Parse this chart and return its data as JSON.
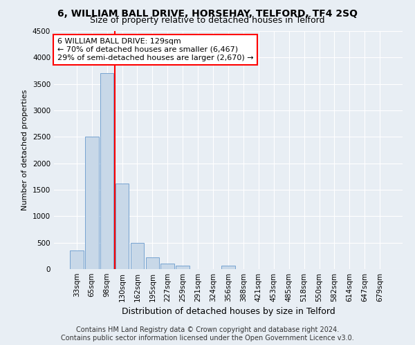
{
  "title1": "6, WILLIAM BALL DRIVE, HORSEHAY, TELFORD, TF4 2SQ",
  "title2": "Size of property relative to detached houses in Telford",
  "xlabel": "Distribution of detached houses by size in Telford",
  "ylabel": "Number of detached properties",
  "categories": [
    "33sqm",
    "65sqm",
    "98sqm",
    "130sqm",
    "162sqm",
    "195sqm",
    "227sqm",
    "259sqm",
    "291sqm",
    "324sqm",
    "356sqm",
    "388sqm",
    "421sqm",
    "453sqm",
    "485sqm",
    "518sqm",
    "550sqm",
    "582sqm",
    "614sqm",
    "647sqm",
    "679sqm"
  ],
  "values": [
    350,
    2500,
    3700,
    1620,
    500,
    220,
    100,
    60,
    0,
    0,
    60,
    0,
    0,
    0,
    0,
    0,
    0,
    0,
    0,
    0,
    0
  ],
  "bar_color": "#c8d8e8",
  "bar_edge_color": "#6699cc",
  "vline_color": "red",
  "vline_x_index": 3,
  "annotation_line1": "6 WILLIAM BALL DRIVE: 129sqm",
  "annotation_line2": "← 70% of detached houses are smaller (6,467)",
  "annotation_line3": "29% of semi-detached houses are larger (2,670) →",
  "annotation_box_color": "white",
  "annotation_box_edge_color": "red",
  "ylim": [
    0,
    4500
  ],
  "yticks": [
    0,
    500,
    1000,
    1500,
    2000,
    2500,
    3000,
    3500,
    4000,
    4500
  ],
  "background_color": "#e8eef4",
  "plot_bg_color": "#e8eef4",
  "footer_text": "Contains HM Land Registry data © Crown copyright and database right 2024.\nContains public sector information licensed under the Open Government Licence v3.0.",
  "title1_fontsize": 10,
  "title2_fontsize": 9,
  "xlabel_fontsize": 9,
  "ylabel_fontsize": 8,
  "annotation_fontsize": 8,
  "tick_fontsize": 7.5,
  "footer_fontsize": 7
}
